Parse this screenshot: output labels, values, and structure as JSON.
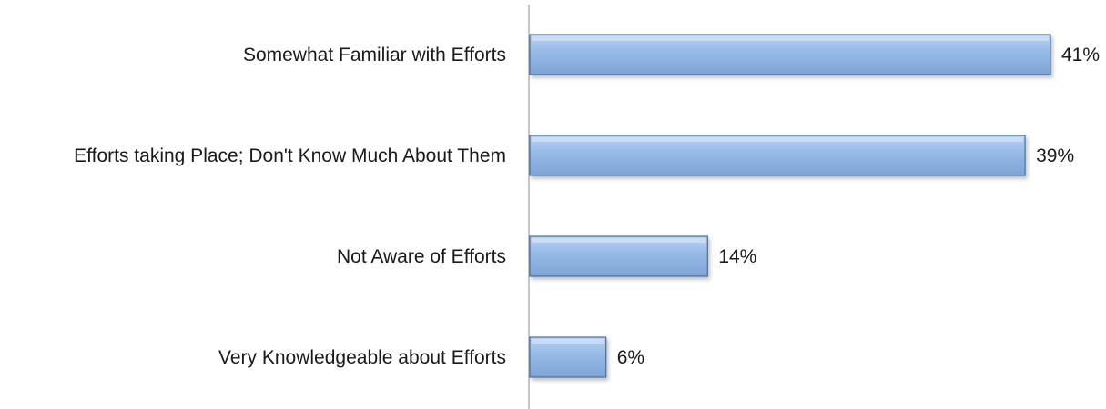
{
  "chart_data": {
    "type": "bar",
    "orientation": "horizontal",
    "categories": [
      "Somewhat Familiar with Efforts",
      "Efforts taking Place; Don't Know Much About Them",
      "Not Aware of Efforts",
      "Very Knowledgeable about Efforts"
    ],
    "values": [
      41,
      39,
      14,
      6
    ],
    "data_labels": [
      "41%",
      "39%",
      "14%",
      "6%"
    ],
    "unit": "%",
    "title": "",
    "xlabel": "",
    "ylabel": "",
    "xlim": [
      0,
      41
    ],
    "grid": false,
    "legend": "none",
    "bar_color": "#8db3e2",
    "bar_edge_color": "#4a6f9e"
  }
}
